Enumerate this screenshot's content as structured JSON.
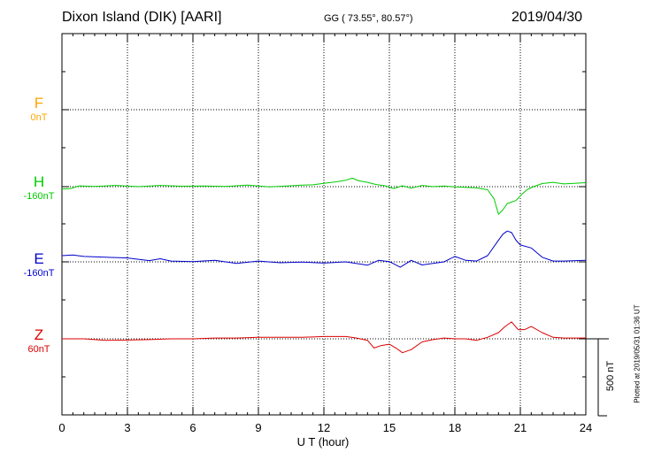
{
  "header": {
    "title": "Dixon Island (DIK)  [AARI]",
    "coords": "GG ( 73.55°,  80.57°)",
    "date": "2019/04/30"
  },
  "components": [
    {
      "name": "F",
      "baseline": "0nT",
      "color": "#ffa500"
    },
    {
      "name": "H",
      "baseline": "-160nT",
      "color": "#00cc00"
    },
    {
      "name": "E",
      "baseline": "-160nT",
      "color": "#0000cc"
    },
    {
      "name": "Z",
      "baseline": "60nT",
      "color": "#dd0000"
    }
  ],
  "xaxis": {
    "label": "U T (hour)",
    "ticks": [
      "0",
      "3",
      "6",
      "9",
      "12",
      "15",
      "18",
      "21",
      "24"
    ]
  },
  "scale_bar": {
    "label": "500 nT",
    "value_nT": 500
  },
  "plotted_note": "Plotted at 2019/05/31 01:36 UT",
  "chart_data": {
    "type": "line",
    "xlabel": "U T (hour)",
    "xlim": [
      0,
      24
    ],
    "x_ticks": [
      0,
      3,
      6,
      9,
      12,
      15,
      18,
      21,
      24
    ],
    "grid": true,
    "scale_nT": 500,
    "units": "nT (relative to baseline)",
    "series": [
      {
        "name": "F",
        "baseline_nT": 0,
        "color": "#ffa500",
        "x": [],
        "values": []
      },
      {
        "name": "H",
        "baseline_nT": -160,
        "color": "#00cc00",
        "x": [
          0,
          0.4,
          0.8,
          1.5,
          2.5,
          3.5,
          4.5,
          5.5,
          6.5,
          7.5,
          8.5,
          9.5,
          10.5,
          11,
          11.5,
          12,
          12.5,
          13,
          13.3,
          13.6,
          14,
          14.4,
          14.8,
          15.2,
          15.6,
          16,
          16.5,
          17,
          17.5,
          18,
          18.5,
          19,
          19.5,
          19.8,
          20,
          20.2,
          20.4,
          20.6,
          20.8,
          21,
          21.3,
          21.6,
          22,
          22.5,
          23,
          24
        ],
        "values": [
          -15,
          -12,
          5,
          2,
          8,
          0,
          8,
          3,
          4,
          1,
          10,
          -2,
          6,
          10,
          12,
          22,
          30,
          42,
          55,
          38,
          28,
          14,
          6,
          -12,
          6,
          -10,
          8,
          0,
          4,
          -2,
          -4,
          -8,
          -20,
          -80,
          -180,
          -150,
          -110,
          -100,
          -90,
          -60,
          -20,
          0,
          20,
          28,
          18,
          26
        ]
      },
      {
        "name": "E",
        "baseline_nT": -160,
        "color": "#0000cc",
        "x": [
          0,
          0.5,
          1,
          2,
          3,
          4,
          4.5,
          5,
          6,
          7,
          8,
          9,
          10,
          11,
          12,
          13,
          14,
          14.5,
          15,
          15.5,
          16,
          16.5,
          17,
          17.5,
          18,
          18.5,
          19,
          19.5,
          20,
          20.2,
          20.4,
          20.6,
          20.8,
          21,
          21.5,
          22,
          22.5,
          23,
          24
        ],
        "values": [
          40,
          45,
          35,
          30,
          25,
          8,
          20,
          5,
          2,
          10,
          -10,
          5,
          -6,
          -2,
          -8,
          0,
          -22,
          10,
          2,
          -35,
          10,
          -20,
          -10,
          0,
          35,
          10,
          5,
          40,
          140,
          180,
          200,
          190,
          140,
          110,
          90,
          30,
          5,
          5,
          10
        ]
      },
      {
        "name": "Z",
        "baseline_nT": 60,
        "color": "#dd0000",
        "x": [
          0,
          1,
          2,
          3,
          4,
          5,
          6,
          7,
          8,
          9,
          10,
          11,
          11.5,
          12,
          12.5,
          13,
          13.5,
          14,
          14.3,
          14.6,
          15,
          15.3,
          15.6,
          16,
          16.5,
          17,
          17.5,
          18,
          18.5,
          19,
          19.5,
          20,
          20.3,
          20.6,
          20.9,
          21.2,
          21.5,
          22,
          22.5,
          23,
          24
        ],
        "values": [
          0,
          0,
          -10,
          -8,
          -5,
          0,
          0,
          5,
          5,
          10,
          10,
          10,
          12,
          15,
          15,
          15,
          5,
          -10,
          -60,
          -45,
          -35,
          -60,
          -90,
          -70,
          -20,
          -5,
          5,
          0,
          0,
          -10,
          10,
          40,
          80,
          110,
          60,
          60,
          80,
          40,
          10,
          5,
          5
        ]
      }
    ]
  }
}
